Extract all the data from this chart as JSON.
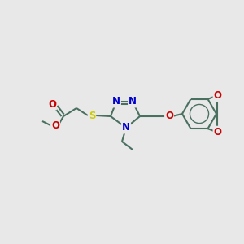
{
  "background_color": "#e8e8e8",
  "bond_color": "#4a7060",
  "atom_colors": {
    "N": "#0000cc",
    "O": "#cc0000",
    "S": "#cccc00",
    "C": "#4a7060"
  },
  "figsize": [
    3.0,
    3.0
  ],
  "dpi": 100,
  "lw": 1.5,
  "fs": 8.5
}
